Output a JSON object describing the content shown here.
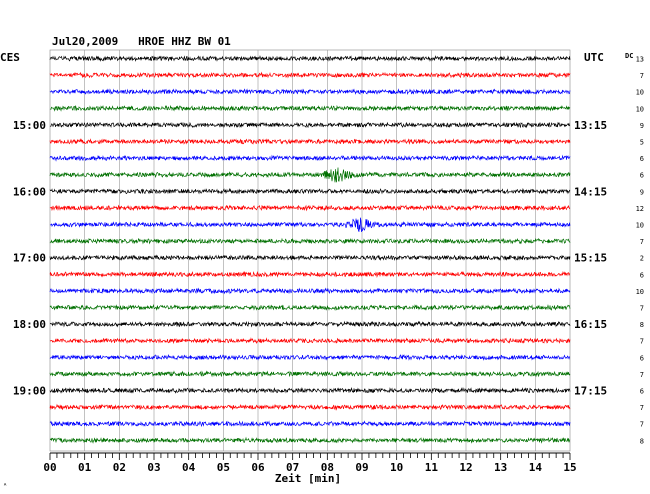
{
  "chart_data": {
    "type": "line",
    "title": "Jul20,2009   HROE HHZ BW 01",
    "left_timezone": "CES",
    "right_timezone": "UTC",
    "right_header": "DC",
    "xlabel": "Zeit [min]",
    "xlim": [
      0,
      15
    ],
    "x_ticks": [
      "00",
      "01",
      "02",
      "03",
      "04",
      "05",
      "06",
      "07",
      "08",
      "09",
      "10",
      "11",
      "12",
      "13",
      "14",
      "15"
    ],
    "trace_minutes": 15,
    "trace_colors": [
      "#000000",
      "#ff0000",
      "#0000ff",
      "#007000"
    ],
    "left_hour_labels": [
      {
        "row": 4,
        "label": "15:00"
      },
      {
        "row": 8,
        "label": "16:00"
      },
      {
        "row": 12,
        "label": "17:00"
      },
      {
        "row": 16,
        "label": "18:00"
      },
      {
        "row": 20,
        "label": "19:00"
      }
    ],
    "right_hour_labels": [
      {
        "row": 4,
        "label": "13:15"
      },
      {
        "row": 8,
        "label": "14:15"
      },
      {
        "row": 12,
        "label": "15:15"
      },
      {
        "row": 16,
        "label": "16:15"
      },
      {
        "row": 20,
        "label": "17:15"
      }
    ],
    "dc_values": [
      13,
      7,
      10,
      10,
      9,
      5,
      6,
      6,
      9,
      12,
      10,
      7,
      2,
      6,
      10,
      7,
      8,
      7,
      6,
      7,
      6,
      7,
      7,
      8
    ],
    "events": [
      {
        "row": 7,
        "minute": 8.3,
        "label": ""
      },
      {
        "row": 10,
        "minute": 8.9,
        "label": ""
      }
    ]
  },
  "footer_mark": "ᴬ"
}
